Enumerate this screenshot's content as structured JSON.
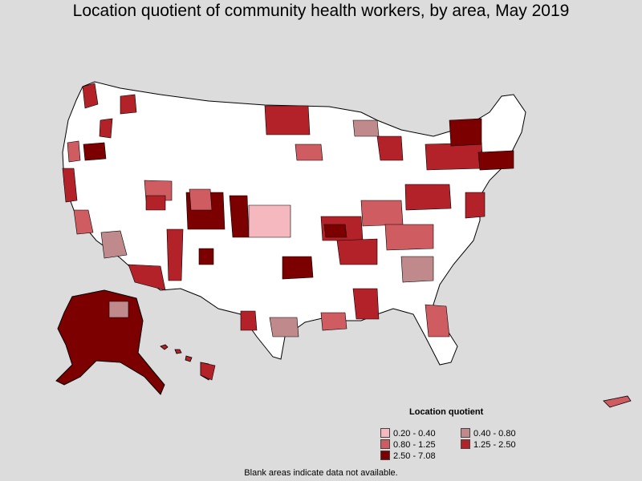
{
  "title": "Location quotient of community health workers, by area, May 2019",
  "legend": {
    "title": "Location quotient",
    "items": [
      {
        "label": "0.20 - 0.40",
        "color": "#f4b8be"
      },
      {
        "label": "0.40 - 0.80",
        "color": "#c08a8d"
      },
      {
        "label": "0.80 - 1.25",
        "color": "#cf5c61"
      },
      {
        "label": "1.25 - 2.50",
        "color": "#b22228"
      },
      {
        "label": "2.50 - 7.08",
        "color": "#7d0000"
      }
    ]
  },
  "footnote": "Blank areas indicate data not available.",
  "colors": {
    "background": "#dcdcdc",
    "no_data": "#ffffff",
    "border": "#000000"
  }
}
